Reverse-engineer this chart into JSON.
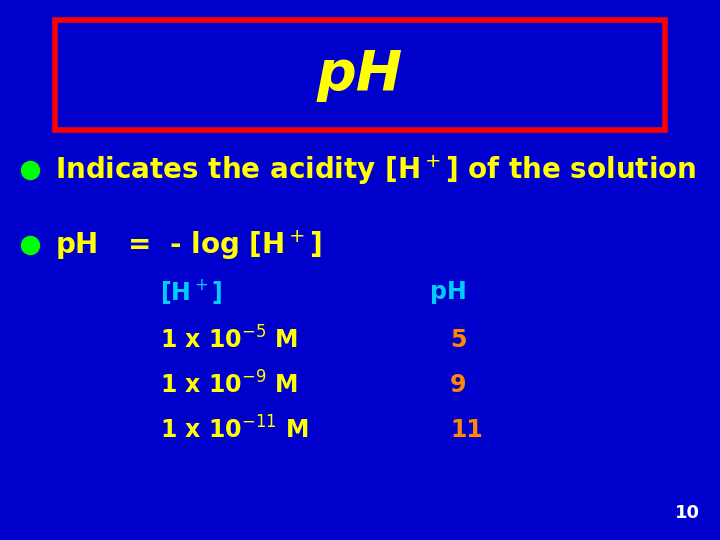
{
  "background_color": "#0000cc",
  "title_text": "pH",
  "title_color": "#ffff00",
  "title_box_edge_color": "#ff0000",
  "bullet_color": "#00ff00",
  "yellow_color": "#ffff00",
  "cyan_color": "#00ccff",
  "orange_color": "#ff8800",
  "white_color": "#ffffff",
  "page_number": "10"
}
